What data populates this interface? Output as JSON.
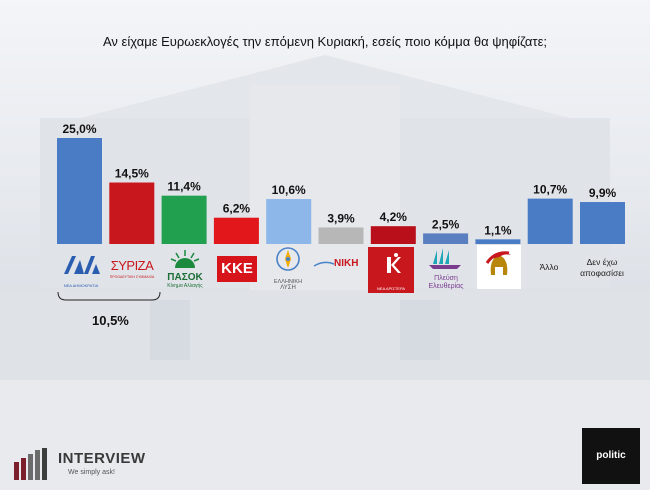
{
  "title": "Αν είχαμε Ευρωεκλογές την επόμενη Κυριακή, εσείς ποιο κόμμα θα ψηφίζατε;",
  "chart_data": {
    "type": "bar",
    "title": "Αν είχαμε Ευρωεκλογές την επόμενη Κυριακή, εσείς ποιο κόμμα θα ψηφίζατε;",
    "categories": [
      "ΝΔ",
      "ΣΥΡΙΖΑ",
      "ΠΑΣΟΚ",
      "ΚΚΕ",
      "Ελληνική Λύση",
      "ΝΙΚΗ",
      "Νέα Αριστερά",
      "Πλεύση Ελευθερίας",
      "Σπαρτιάτες",
      "Άλλο",
      "Δεν έχω αποφασίσει"
    ],
    "values": [
      25.0,
      14.5,
      11.4,
      6.2,
      10.6,
      3.9,
      4.2,
      2.5,
      1.1,
      10.7,
      9.9
    ],
    "value_labels": [
      "25,0%",
      "14,5%",
      "11,4%",
      "6,2%",
      "10,6%",
      "3,9%",
      "4,2%",
      "2,5%",
      "1,1%",
      "10,7%",
      "9,9%"
    ],
    "colors": [
      "#4a7cc5",
      "#c8171d",
      "#21a04f",
      "#e2171c",
      "#8db7e8",
      "#b7b7b7",
      "#b80f1a",
      "#5a7fc0",
      "#4a7cc5",
      "#4a7cc5",
      "#4a7cc5"
    ],
    "ylim": [
      0,
      25
    ],
    "grid": false,
    "annotations": [
      {
        "text": "10,5%"
      }
    ]
  },
  "labels": {
    "nd_sub": "ΝΕΑ ΔΗΜΟΚΡΑΤΙΑ",
    "syriza": "ΣΥΡΙΖΑ",
    "syriza_sub": "ΠΡΟΟΔΕΥΤΙΚΗ ΣΥΜΜΑΧΙΑ",
    "pasok": "ΠΑΣΟΚ",
    "pasok_sub": "Κίνημα Αλλαγής",
    "kke": "ΚΚΕ",
    "el_line1": "ΕΛΛΗΝΙΚΗ",
    "el_line2": "ΛΥΣΗ",
    "niki": "ΝΙΚΗ",
    "nea_sub": "ΝΕΑ ΑΡΙΣΤΕΡΑ",
    "plefsi_line1": "Πλεύση",
    "plefsi_line2": "Ελευθερίας",
    "allo": "Άλλο",
    "undecided_line1": "Δεν έχω",
    "undecided_line2": "αποφασίσει",
    "combined": "10,5%"
  },
  "footer": {
    "interview_name": "INTERVIEW",
    "interview_tag": "We simply ask!",
    "politic_name": "politic"
  },
  "icons": {
    "nd": "nd-logo-icon",
    "pasok": "pasok-sun-icon",
    "el": "compass-icon",
    "nea": "nea-aristera-icon",
    "plefsi": "ship-icon",
    "spartiates": "spartan-helmet-icon"
  }
}
